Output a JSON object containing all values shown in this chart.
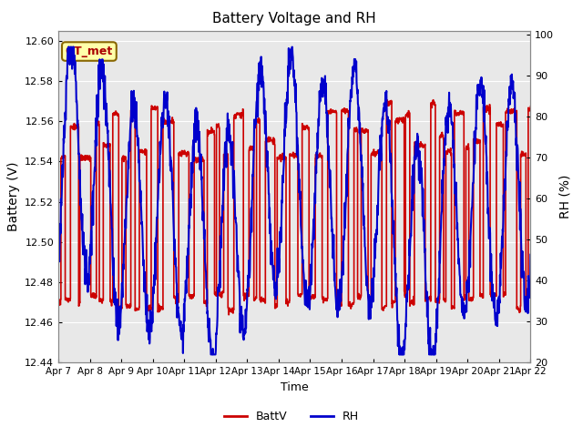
{
  "title": "Battery Voltage and RH",
  "xlabel": "Time",
  "ylabel_left": "Battery (V)",
  "ylabel_right": "RH (%)",
  "annotation": "GT_met",
  "ylim_left": [
    12.44,
    12.605
  ],
  "ylim_right": [
    20,
    101
  ],
  "yticks_left": [
    12.44,
    12.46,
    12.48,
    12.5,
    12.52,
    12.54,
    12.56,
    12.58,
    12.6
  ],
  "yticks_right": [
    20,
    30,
    40,
    50,
    60,
    70,
    80,
    90,
    100
  ],
  "x_tick_labels": [
    "Apr 7",
    "Apr 8",
    "Apr 9",
    "Apr 10",
    "Apr 11",
    "Apr 12",
    "Apr 13",
    "Apr 14",
    "Apr 15",
    "Apr 16",
    "Apr 17",
    "Apr 18",
    "Apr 19",
    "Apr 20",
    "Apr 21",
    "Apr 22"
  ],
  "batt_color": "#cc0000",
  "rh_color": "#0000cc",
  "legend_items": [
    "BattV",
    "RH"
  ],
  "plot_bg": "#e8e8e8",
  "fig_bg": "#ffffff",
  "annotation_bg": "#ffffaa",
  "annotation_fg": "#aa0000",
  "annotation_border": "#886600",
  "grid_color": "#ffffff",
  "batt_linewidth": 1.2,
  "rh_linewidth": 1.5
}
